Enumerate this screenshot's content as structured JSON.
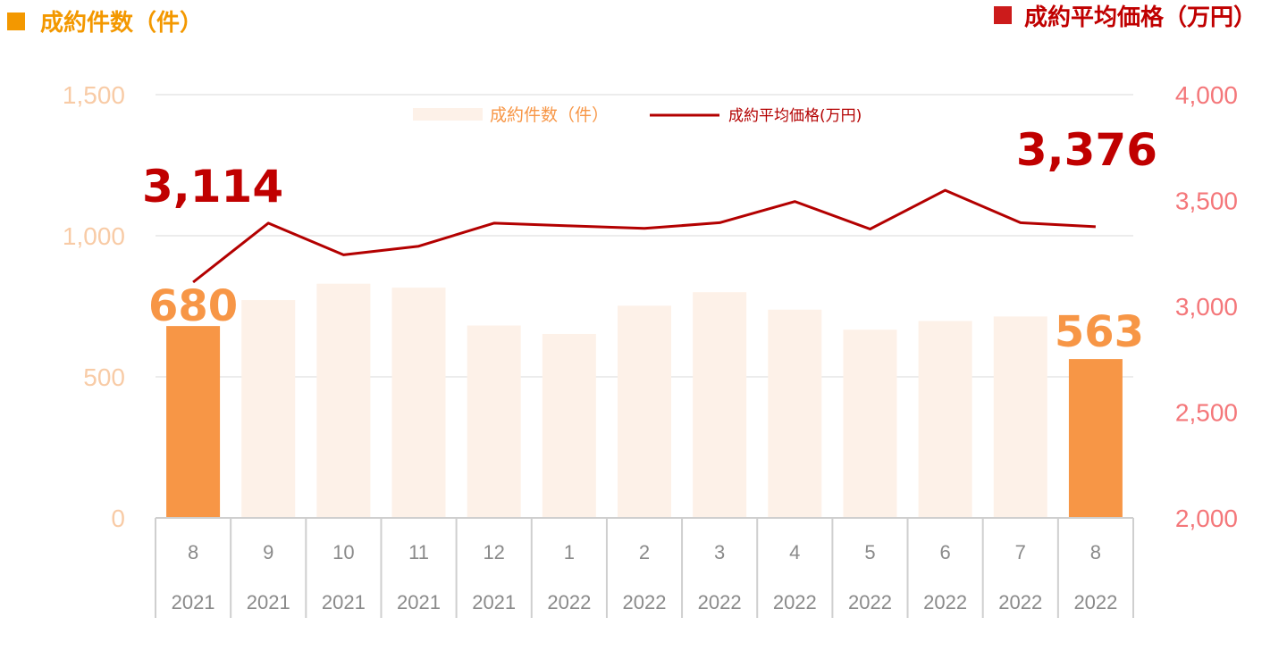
{
  "header": {
    "left_title": "成約件数（件）",
    "right_title": "成約平均価格（万円）"
  },
  "legend": {
    "bar_label": "成約件数（件）",
    "line_label": "成約平均価格(万円)"
  },
  "colors": {
    "header_left": "#f39800",
    "header_right": "#c00000",
    "bar_highlight": "#f79646",
    "bar_muted": "#fdf1e8",
    "line": "#b30000",
    "left_axis": "#f8cba6",
    "right_axis": "#f4777a",
    "bar_label": "#f79646",
    "line_label": "#c00000",
    "gridline": "#e6e6e6",
    "category_grid": "#cfcfcf",
    "category_text": "#8a8a8a"
  },
  "chart_data": {
    "type": "bar",
    "categories": [
      "8",
      "9",
      "10",
      "11",
      "12",
      "1",
      "2",
      "3",
      "4",
      "5",
      "6",
      "7",
      "8"
    ],
    "category_years": [
      "2021",
      "2021",
      "2021",
      "2021",
      "2021",
      "2022",
      "2022",
      "2022",
      "2022",
      "2022",
      "2022",
      "2022",
      "2022"
    ],
    "series": [
      {
        "name": "成約件数（件）",
        "type": "bar",
        "axis": "left",
        "values": [
          680,
          772,
          830,
          816,
          682,
          652,
          752,
          800,
          738,
          667,
          698,
          714,
          563
        ],
        "highlight": [
          true,
          false,
          false,
          false,
          false,
          false,
          false,
          false,
          false,
          false,
          false,
          false,
          true
        ]
      },
      {
        "name": "成約平均価格(万円)",
        "type": "line",
        "axis": "right",
        "values": [
          3114,
          3393,
          3243,
          3284,
          3393,
          3380,
          3368,
          3395,
          3495,
          3365,
          3548,
          3395,
          3376
        ]
      }
    ],
    "left_axis": {
      "ylim": [
        0,
        1500
      ],
      "ticks": [
        "0",
        "500",
        "1,000",
        "1,500"
      ],
      "tick_values": [
        0,
        500,
        1000,
        1500
      ]
    },
    "right_axis": {
      "ylim": [
        2000,
        4000
      ],
      "ticks": [
        "2,000",
        "2,500",
        "3,000",
        "3,500",
        "4,000"
      ],
      "tick_values": [
        2000,
        2500,
        3000,
        3500,
        4000
      ]
    },
    "annotations": {
      "first_bar_label": "680",
      "last_bar_label": "563",
      "first_line_label": "3,114",
      "last_line_label": "3,376"
    },
    "grid": true,
    "legend_position": "top-center"
  }
}
